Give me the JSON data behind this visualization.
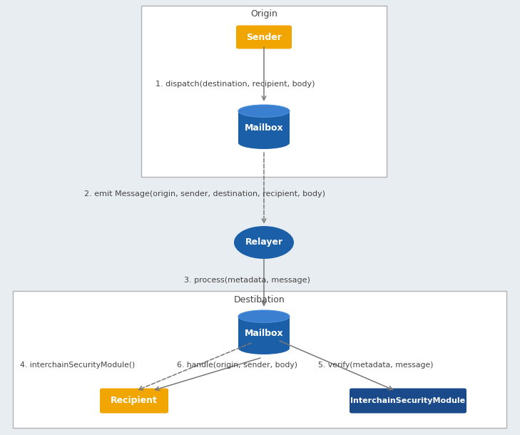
{
  "bg_color": "#e8edf2",
  "box_color": "#ffffff",
  "box_edge_color": "#b0b0b0",
  "sender_color": "#f0a500",
  "mailbox_color": "#1a5fa8",
  "relayer_color": "#1a5fa8",
  "recipient_color": "#f0a500",
  "ism_color": "#1a4a8a",
  "text_color": "#444444",
  "arrow_color": "#777777",
  "title_origin": "Origin",
  "title_destination": "Destibation",
  "label_sender": "Sender",
  "label_mailbox": "Mailbox",
  "label_relayer": "Relayer",
  "label_recipient": "Recipient",
  "label_ism": "InterchainSecurityModule",
  "step1": "1. dispatch(destination, recipient, body)",
  "step2": "2. emit Message(origin, sender, destination, recipient, body)",
  "step3": "3. process(metadata, message)",
  "step4": "4. interchainSecurityModule()",
  "step5": "5. verify(metadata, message)",
  "step6": "6. handle(origin, sender, body)",
  "fig_w": 7.29,
  "fig_h": 6.1,
  "dpi": 100
}
